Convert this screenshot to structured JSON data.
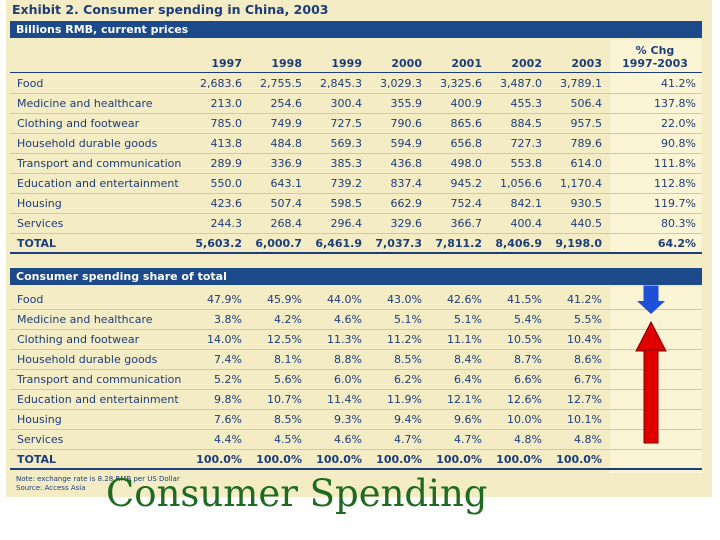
{
  "title": "Exhibit 2. Consumer spending in China, 2003",
  "section1": {
    "header": "Billions RMB, current prices",
    "columns": [
      "1997",
      "1998",
      "1999",
      "2000",
      "2001",
      "2002",
      "2003"
    ],
    "chg_header_line1": "% Chg",
    "chg_header_line2": "1997-2003",
    "rows": [
      {
        "label": "Food",
        "values": [
          "2,683.6",
          "2,755.5",
          "2,845.3",
          "3,029.3",
          "3,325.6",
          "3,487.0",
          "3,789.1",
          "41.2%"
        ]
      },
      {
        "label": "Medicine and healthcare",
        "values": [
          "213.0",
          "254.6",
          "300.4",
          "355.9",
          "400.9",
          "455.3",
          "506.4",
          "137.8%"
        ]
      },
      {
        "label": "Clothing and footwear",
        "values": [
          "785.0",
          "749.9",
          "727.5",
          "790.6",
          "865.6",
          "884.5",
          "957.5",
          "22.0%"
        ]
      },
      {
        "label": "Household durable goods",
        "values": [
          "413.8",
          "484.8",
          "569.3",
          "594.9",
          "656.8",
          "727.3",
          "789.6",
          "90.8%"
        ]
      },
      {
        "label": "Transport and communication",
        "values": [
          "289.9",
          "336.9",
          "385.3",
          "436.8",
          "498.0",
          "553.8",
          "614.0",
          "111.8%"
        ]
      },
      {
        "label": "Education and entertainment",
        "values": [
          "550.0",
          "643.1",
          "739.2",
          "837.4",
          "945.2",
          "1,056.6",
          "1,170.4",
          "112.8%"
        ]
      },
      {
        "label": "Housing",
        "values": [
          "423.6",
          "507.4",
          "598.5",
          "662.9",
          "752.4",
          "842.1",
          "930.5",
          "119.7%"
        ]
      },
      {
        "label": "Services",
        "values": [
          "244.3",
          "268.4",
          "296.4",
          "329.6",
          "366.7",
          "400.4",
          "440.5",
          "80.3%"
        ]
      }
    ],
    "total": {
      "label": "TOTAL",
      "values": [
        "5,603.2",
        "6,000.7",
        "6,461.9",
        "7,037.3",
        "7,811.2",
        "8,406.9",
        "9,198.0",
        "64.2%"
      ]
    }
  },
  "section2": {
    "header": "Consumer spending share of total",
    "rows": [
      {
        "label": "Food",
        "values": [
          "47.9%",
          "45.9%",
          "44.0%",
          "43.0%",
          "42.6%",
          "41.5%",
          "41.2%"
        ]
      },
      {
        "label": "Medicine and healthcare",
        "values": [
          "3.8%",
          "4.2%",
          "4.6%",
          "5.1%",
          "5.1%",
          "5.4%",
          "5.5%"
        ]
      },
      {
        "label": "Clothing and footwear",
        "values": [
          "14.0%",
          "12.5%",
          "11.3%",
          "11.2%",
          "11.1%",
          "10.5%",
          "10.4%"
        ]
      },
      {
        "label": "Household durable goods",
        "values": [
          "7.4%",
          "8.1%",
          "8.8%",
          "8.5%",
          "8.4%",
          "8.7%",
          "8.6%"
        ]
      },
      {
        "label": "Transport and communication",
        "values": [
          "5.2%",
          "5.6%",
          "6.0%",
          "6.2%",
          "6.4%",
          "6.6%",
          "6.7%"
        ]
      },
      {
        "label": "Education and entertainment",
        "values": [
          "9.8%",
          "10.7%",
          "11.4%",
          "11.9%",
          "12.1%",
          "12.6%",
          "12.7%"
        ]
      },
      {
        "label": "Housing",
        "values": [
          "7.6%",
          "8.5%",
          "9.3%",
          "9.4%",
          "9.6%",
          "10.0%",
          "10.1%"
        ]
      },
      {
        "label": "Services",
        "values": [
          "4.4%",
          "4.5%",
          "4.6%",
          "4.7%",
          "4.7%",
          "4.8%",
          "4.8%"
        ]
      }
    ],
    "total": {
      "label": "TOTAL",
      "values": [
        "100.0%",
        "100.0%",
        "100.0%",
        "100.0%",
        "100.0%",
        "100.0%",
        "100.0%"
      ]
    }
  },
  "note_line1": "Note: exchange rate is 8.28 RMB per US Dollar",
  "note_line2": "Source: Access Asia",
  "slide_title": "Consumer Spending",
  "colors": {
    "navy": "#1d4a8a",
    "panel": "#f4ecc4",
    "title_green": "#1f6a23",
    "arrow_down": "#1e4fd8",
    "arrow_up": "#e00000"
  }
}
